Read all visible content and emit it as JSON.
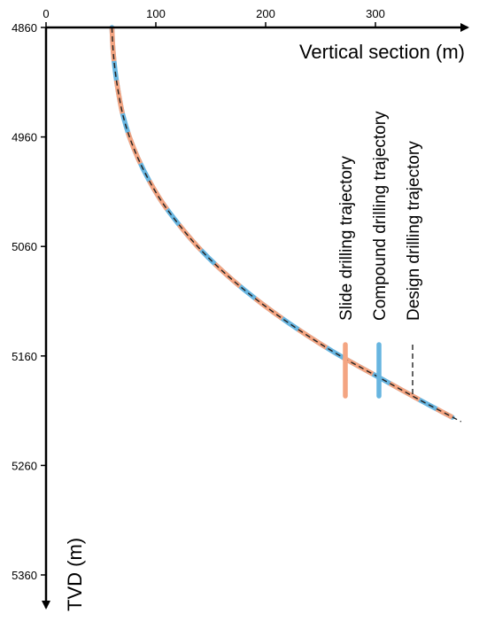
{
  "chart_data": {
    "type": "line",
    "title": "",
    "xlabel": "Vertical section (m)",
    "ylabel": "TVD (m)",
    "xlim": [
      0,
      380
    ],
    "ylim": [
      4860,
      5380
    ],
    "x_ticks": [
      "0",
      "100",
      "200",
      "300"
    ],
    "y_ticks": [
      "4860",
      "4960",
      "5060",
      "5160",
      "5260",
      "5360"
    ],
    "y_inverted": true,
    "legend_position": "right",
    "series": [
      {
        "name": "Slide drilling trajectory",
        "color": "#f4a582",
        "style": "solid-thick",
        "x": [
          60,
          61,
          63,
          66,
          70,
          76,
          84,
          94,
          106,
          121,
          138,
          158,
          181,
          207,
          236,
          268,
          304,
          340,
          370
        ],
        "y": [
          4860,
          4880,
          4900,
          4920,
          4940,
          4960,
          4980,
          5000,
          5020,
          5040,
          5060,
          5080,
          5100,
          5120,
          5140,
          5160,
          5180,
          5200,
          5216
        ]
      },
      {
        "name": "Compound drilling trajectory",
        "color": "#67b5e0",
        "style": "solid-thick",
        "x": [
          60,
          61,
          63,
          66,
          70,
          76,
          84,
          94,
          106,
          121,
          138,
          158,
          181,
          207,
          236,
          268,
          304,
          340,
          370
        ],
        "y": [
          4860,
          4880,
          4900,
          4920,
          4940,
          4960,
          4980,
          5000,
          5020,
          5040,
          5060,
          5080,
          5100,
          5120,
          5140,
          5160,
          5180,
          5200,
          5216
        ]
      },
      {
        "name": "Design drilling trajectory",
        "color": "#222222",
        "style": "dashed",
        "x": [
          60,
          61,
          63,
          66,
          70,
          76,
          84,
          94,
          106,
          121,
          138,
          158,
          181,
          207,
          236,
          268,
          304,
          340,
          378
        ],
        "y": [
          4860,
          4880,
          4900,
          4920,
          4940,
          4960,
          4980,
          5000,
          5020,
          5040,
          5060,
          5080,
          5100,
          5120,
          5140,
          5160,
          5180,
          5200,
          5220
        ]
      }
    ]
  }
}
